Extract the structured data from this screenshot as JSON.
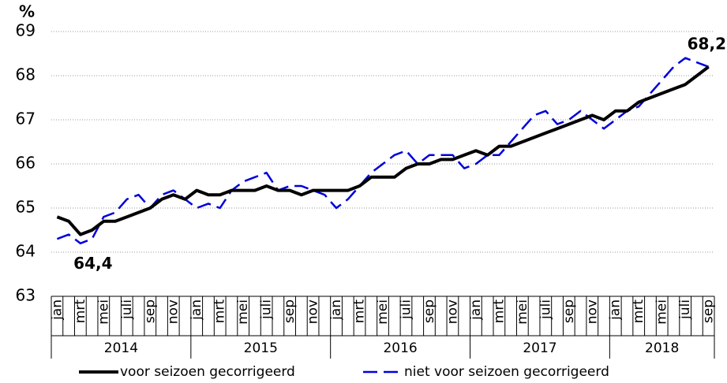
{
  "chart_data": {
    "type": "line",
    "y_unit_label": "%",
    "categories": [
      "jan",
      null,
      "mrt",
      null,
      "mei",
      null,
      "juli",
      null,
      "sep",
      null,
      "nov",
      null,
      "jan",
      null,
      "mrt",
      null,
      "mei",
      null,
      "juli",
      null,
      "sep",
      null,
      "nov",
      null,
      "jan",
      null,
      "mrt",
      null,
      "mei",
      null,
      "juli",
      null,
      "sep",
      null,
      "nov",
      null,
      "jan",
      null,
      "mrt",
      null,
      "mei",
      null,
      "juli",
      null,
      "sep",
      null,
      "nov",
      null,
      "jan",
      null,
      "mrt",
      null,
      "mei",
      null,
      "juli",
      null,
      "sep"
    ],
    "category_group": [
      "2014",
      "2014",
      "2014",
      "2014",
      "2014",
      "2014",
      "2014",
      "2014",
      "2014",
      "2014",
      "2014",
      "2014",
      "2015",
      "2015",
      "2015",
      "2015",
      "2015",
      "2015",
      "2015",
      "2015",
      "2015",
      "2015",
      "2015",
      "2015",
      "2016",
      "2016",
      "2016",
      "2016",
      "2016",
      "2016",
      "2016",
      "2016",
      "2016",
      "2016",
      "2016",
      "2016",
      "2017",
      "2017",
      "2017",
      "2017",
      "2017",
      "2017",
      "2017",
      "2017",
      "2017",
      "2017",
      "2017",
      "2017",
      "2018",
      "2018",
      "2018",
      "2018",
      "2018",
      "2018",
      "2018",
      "2018",
      "2018"
    ],
    "series": [
      {
        "name": "voor seizoen gecorrigeerd",
        "color": "#000000",
        "dashed": false,
        "values": [
          64.8,
          64.7,
          64.4,
          64.5,
          64.7,
          64.7,
          64.8,
          64.9,
          65.0,
          65.2,
          65.3,
          65.2,
          65.4,
          65.3,
          65.3,
          65.4,
          65.4,
          65.4,
          65.5,
          65.4,
          65.4,
          65.3,
          65.4,
          65.4,
          65.4,
          65.4,
          65.5,
          65.7,
          65.7,
          65.7,
          65.9,
          66.0,
          66.0,
          66.1,
          66.1,
          66.2,
          66.3,
          66.2,
          66.4,
          66.4,
          66.5,
          66.6,
          66.7,
          66.8,
          66.9,
          67.0,
          67.1,
          67.0,
          67.2,
          67.2,
          67.4,
          67.5,
          67.6,
          67.7,
          67.8,
          68.0,
          68.2
        ],
        "value_labels": [
          null,
          null,
          "64,4",
          null,
          null,
          null,
          null,
          null,
          null,
          null,
          null,
          null,
          null,
          null,
          null,
          null,
          null,
          null,
          null,
          null,
          null,
          null,
          null,
          null,
          null,
          null,
          null,
          null,
          null,
          null,
          null,
          null,
          null,
          null,
          null,
          null,
          null,
          null,
          null,
          null,
          null,
          null,
          null,
          null,
          null,
          null,
          null,
          null,
          null,
          null,
          null,
          null,
          null,
          null,
          null,
          null,
          "68,2"
        ]
      },
      {
        "name": "niet voor seizoen gecorrigeerd",
        "color": "#0000dd",
        "dashed": true,
        "values": [
          64.3,
          64.4,
          64.2,
          64.3,
          64.8,
          64.9,
          65.2,
          65.3,
          65.0,
          65.3,
          65.4,
          65.2,
          65.0,
          65.1,
          65.0,
          65.4,
          65.6,
          65.7,
          65.8,
          65.4,
          65.5,
          65.5,
          65.4,
          65.3,
          65.0,
          65.2,
          65.5,
          65.8,
          66.0,
          66.2,
          66.3,
          66.0,
          66.2,
          66.2,
          66.2,
          65.9,
          66.0,
          66.2,
          66.2,
          66.5,
          66.8,
          67.1,
          67.2,
          66.9,
          67.0,
          67.2,
          67.0,
          66.8,
          67.0,
          67.2,
          67.3,
          67.6,
          67.9,
          68.2,
          68.4,
          68.3,
          68.2
        ]
      }
    ],
    "ylim": [
      63,
      69
    ],
    "yticks": [
      63,
      64,
      65,
      66,
      67,
      68,
      69
    ],
    "grid": true
  }
}
